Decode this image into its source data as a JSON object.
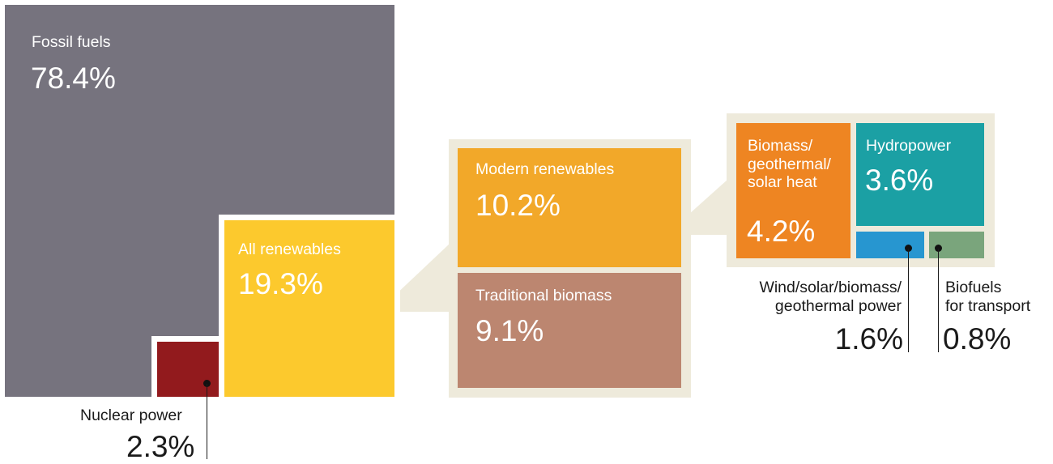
{
  "fossil": {
    "label": "Fossil fuels",
    "value": "78.4%",
    "color": "#76737e"
  },
  "nuclear": {
    "label": "Nuclear power",
    "value": "2.3%",
    "color": "#921a1d"
  },
  "renewables": {
    "label": "All renewables",
    "value": "19.3%",
    "color": "#fcc92d"
  },
  "modern": {
    "label": "Modern renewables",
    "value": "10.2%",
    "color": "#f2a829"
  },
  "traditional": {
    "label": "Traditional biomass",
    "value": "9.1%",
    "color": "#bc8670"
  },
  "heat": {
    "label_lines": [
      "Biomass/",
      "geothermal/",
      "solar heat"
    ],
    "value": "4.2%",
    "color": "#ee8522"
  },
  "hydro": {
    "label": "Hydropower",
    "value": "3.6%",
    "color": "#1ba0a4"
  },
  "wind": {
    "label_lines": [
      "Wind/solar/biomass/",
      "geothermal power"
    ],
    "value": "1.6%",
    "color": "#2796d0"
  },
  "biofuels": {
    "label_lines": [
      "Biofuels",
      "for transport"
    ],
    "value": "0.8%",
    "color": "#7aa57c"
  },
  "callout_color": "#eeeadb"
}
